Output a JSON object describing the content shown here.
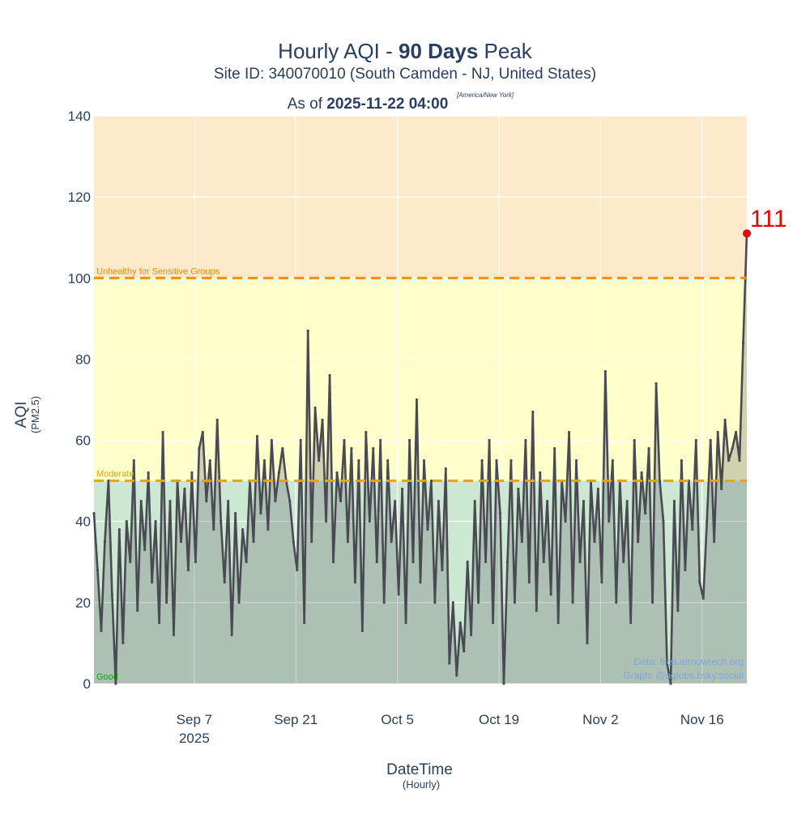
{
  "chart_data": {
    "type": "line",
    "title_prefix": "Hourly AQI - ",
    "title_bold": "90 Days",
    "title_suffix": " Peak",
    "subtitle": "Site ID: 340070010 (South Camden - NJ, United States)",
    "asof_prefix": "As of ",
    "asof_value": "2025-11-22 04:00",
    "timezone": "[America/New York]",
    "xlabel": "DateTime",
    "xlabel_sub": "(Hourly)",
    "ylabel": "AQI",
    "ylabel_sub": "(PM2.5)",
    "ylim": [
      0,
      140
    ],
    "yticks": [
      0,
      20,
      40,
      60,
      80,
      100,
      120,
      140
    ],
    "xrange": [
      "2025-08-24 04:00",
      "2025-11-22 04:00"
    ],
    "xticks": [
      {
        "date": "2025-09-07",
        "label": "Sep 7",
        "sub": "2025"
      },
      {
        "date": "2025-09-21",
        "label": "Sep 21"
      },
      {
        "date": "2025-10-05",
        "label": "Oct 5"
      },
      {
        "date": "2025-10-19",
        "label": "Oct 19"
      },
      {
        "date": "2025-11-02",
        "label": "Nov 2"
      },
      {
        "date": "2025-11-16",
        "label": "Nov 16"
      }
    ],
    "grid": true,
    "series_start": "2025-08-24 04:00",
    "series_interval_hours": 12,
    "values": [
      42,
      28,
      13,
      35,
      50,
      22,
      0,
      38,
      10,
      40,
      30,
      55,
      18,
      45,
      33,
      52,
      25,
      40,
      15,
      62,
      20,
      45,
      12,
      50,
      35,
      48,
      28,
      52,
      30,
      58,
      62,
      45,
      55,
      38,
      65,
      40,
      25,
      45,
      12,
      42,
      20,
      38,
      30,
      50,
      35,
      61,
      42,
      55,
      38,
      60,
      45,
      52,
      58,
      50,
      45,
      35,
      28,
      60,
      15,
      87,
      35,
      68,
      55,
      65,
      40,
      76,
      30,
      52,
      45,
      60,
      35,
      58,
      25,
      55,
      13,
      62,
      40,
      58,
      30,
      60,
      20,
      55,
      35,
      45,
      22,
      48,
      15,
      60,
      30,
      70,
      25,
      55,
      38,
      50,
      20,
      45,
      28,
      53,
      5,
      20,
      2,
      15,
      8,
      30,
      12,
      45,
      20,
      55,
      30,
      60,
      15,
      55,
      42,
      0,
      30,
      55,
      20,
      48,
      35,
      60,
      25,
      67,
      18,
      52,
      30,
      45,
      22,
      58,
      15,
      50,
      40,
      62,
      20,
      55,
      30,
      45,
      10,
      50,
      35,
      48,
      25,
      77,
      40,
      55,
      20,
      50,
      30,
      45,
      15,
      60,
      35,
      52,
      42,
      58,
      20,
      74,
      50,
      40,
      5,
      0,
      45,
      18,
      55,
      28,
      50,
      38,
      60,
      25,
      21,
      40,
      60,
      35,
      62,
      48,
      65,
      55,
      58,
      62,
      55,
      84,
      111
    ],
    "peak_label": "111",
    "bands": [
      {
        "name": "Good",
        "from": 0,
        "to": 50,
        "color": "#cce8d2",
        "label_color": "#1a9a1a"
      },
      {
        "name": "Moderate",
        "from": 50,
        "to": 100,
        "color": "#ffffcc",
        "label_color": "#d4a800",
        "line_color": "#e8a400"
      },
      {
        "name": "Unhealthy for Sensitive Groups",
        "from": 100,
        "to": 140,
        "color": "#fdeacb",
        "label_color": "#f08c00",
        "line_color": "#ff8c00"
      }
    ],
    "line_color": "#4a4a52",
    "peak_color": "#ee0000",
    "credits": [
      "Data: files.airnowtech.org",
      "Graph: @aqiobs.bsky.social"
    ]
  }
}
